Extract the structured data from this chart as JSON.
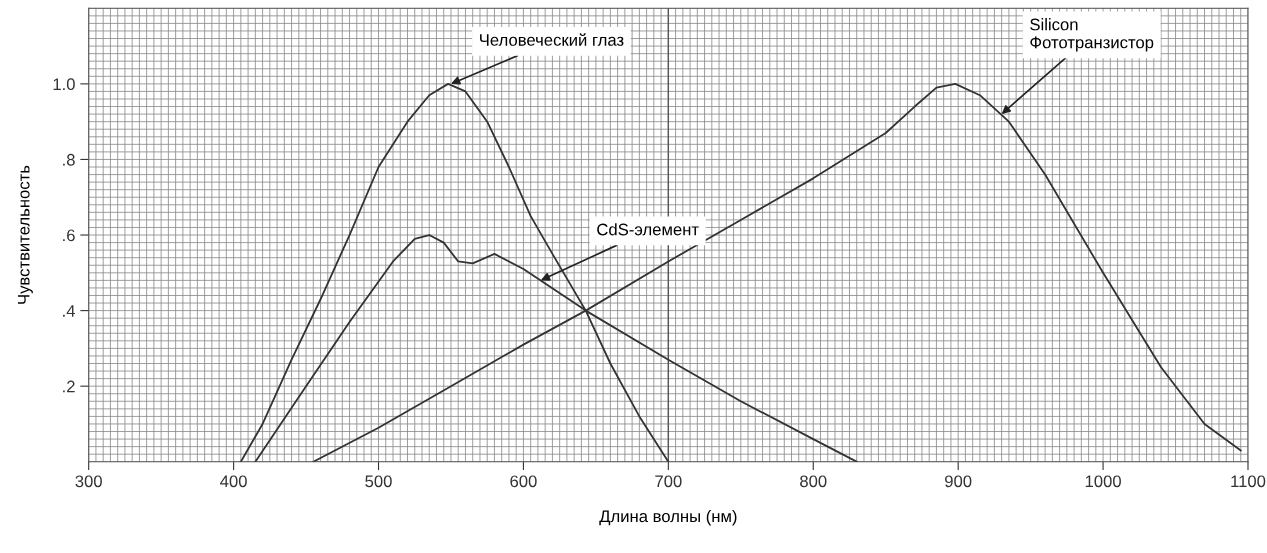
{
  "chart_data": {
    "type": "line",
    "xlabel": "Длина волны (нм)",
    "ylabel": "Чувствительность",
    "xlim": [
      300,
      1100
    ],
    "xticks": [
      300,
      400,
      500,
      600,
      700,
      800,
      900,
      1000,
      1100
    ],
    "ylim": [
      0,
      1.2
    ],
    "yticks": [
      {
        "value": 0.2,
        "label": ".2"
      },
      {
        "value": 0.4,
        "label": ".4"
      },
      {
        "value": 0.6,
        "label": ".6"
      },
      {
        "value": 0.8,
        "label": ".8"
      },
      {
        "value": 1.0,
        "label": "1.0"
      }
    ],
    "grid": true,
    "legend": false,
    "marker": "none",
    "line_style": "solid",
    "ref_lines": [
      {
        "axis": "x",
        "value": 700,
        "color": "#555555"
      }
    ],
    "series": [
      {
        "color": "#333333",
        "x": [
          405,
          420,
          440,
          460,
          480,
          500,
          520,
          535,
          548,
          560,
          575,
          590,
          605,
          620,
          643,
          660,
          680,
          700
        ],
        "values": [
          0,
          0.1,
          0.27,
          0.43,
          0.6,
          0.78,
          0.9,
          0.97,
          1.0,
          0.98,
          0.9,
          0.78,
          0.65,
          0.55,
          0.4,
          0.26,
          0.12,
          0
        ]
      },
      {
        "color": "#333333",
        "x": [
          415,
          450,
          480,
          510,
          525,
          535,
          545,
          555,
          565,
          580,
          600,
          643,
          700,
          750,
          800,
          830
        ],
        "values": [
          0,
          0.2,
          0.37,
          0.53,
          0.59,
          0.6,
          0.58,
          0.53,
          0.525,
          0.55,
          0.51,
          0.4,
          0.27,
          0.16,
          0.06,
          0
        ]
      },
      {
        "color": "#333333",
        "x": [
          455,
          500,
          550,
          600,
          643,
          700,
          750,
          800,
          850,
          870,
          885,
          898,
          915,
          935,
          960,
          1000,
          1040,
          1070,
          1095
        ],
        "values": [
          0,
          0.09,
          0.2,
          0.31,
          0.4,
          0.53,
          0.64,
          0.75,
          0.87,
          0.94,
          0.99,
          1.0,
          0.97,
          0.9,
          0.76,
          0.5,
          0.25,
          0.1,
          0.03
        ]
      }
    ],
    "annotations": [
      {
        "text": "Человеческий глаз",
        "x": 550,
        "y": 1.0
      },
      {
        "text": "CdS-элемент",
        "x": 612,
        "y": 0.48
      },
      {
        "text": "Silicon\nФототранзистор",
        "x": 930,
        "y": 0.92
      }
    ]
  }
}
